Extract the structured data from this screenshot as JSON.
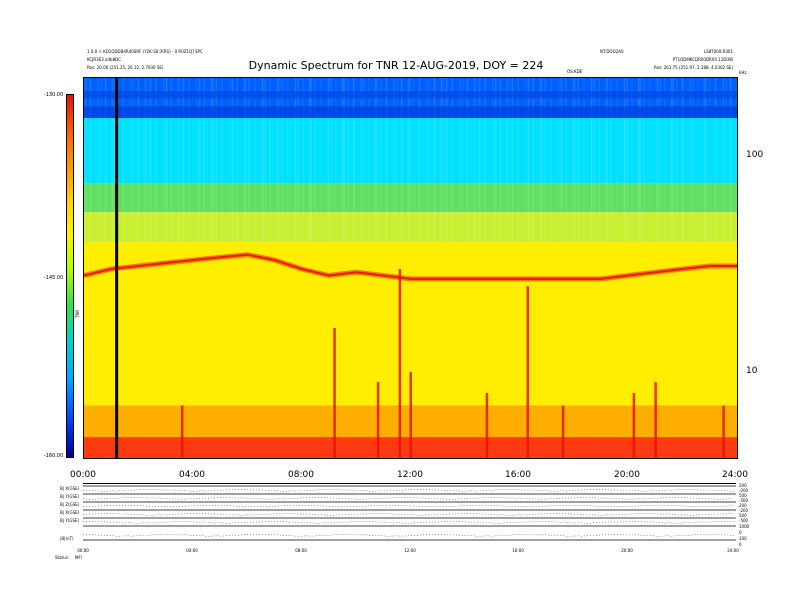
{
  "header": {
    "left_lines": [
      "1 0.0 > KD1QDDB4R40SRF (Y2K:S0 [KRS] - 0 R0Z1Q] SPC",
      "KCJR3E3.a4b8DC",
      "Res: 20.00 (251.25, 26.32, 2.7930 SE)"
    ],
    "right_lines": [
      "LS8T000:R301",
      "PT1QDMKCDR00DR04 11DIXB",
      "Res: 263.75 (251.97, 2.388, 4.0302 SE)"
    ],
    "mid_right_lines": [
      "NT:DOO2A0",
      "OS:KDE"
    ],
    "title": "Dynamic Spectrum for TNR 12-AUG-2019, DOY = 224",
    "corner": "kHz"
  },
  "colorbar": {
    "ticks": [
      "-130.00",
      "-145.00",
      "-160.00"
    ],
    "label": "TNR"
  },
  "chart_data": {
    "type": "heatmap",
    "title": "Dynamic Spectrum for TNR 12-AUG-2019, DOY = 224",
    "xlabel": "",
    "ylabel": "kHz",
    "x_ticks": [
      "00:00",
      "04:00",
      "08:00",
      "12:00",
      "16:00",
      "20:00",
      "24:00"
    ],
    "xlim_hours": [
      0,
      24
    ],
    "y_scale": "log",
    "ylim_khz": [
      4,
      230
    ],
    "y_ticks": [
      {
        "label": "100",
        "value": 100
      },
      {
        "label": "10",
        "value": 10
      }
    ],
    "color_scale": {
      "min": -160.0,
      "max": -130.0,
      "unit": "TNR"
    },
    "bands": [
      {
        "name": "dark-blue band",
        "from_khz": 150,
        "to_khz": 230,
        "color": "#0060ff"
      },
      {
        "name": "cyan background",
        "from_khz": 75,
        "to_khz": 150,
        "color": "#00e0ff"
      },
      {
        "name": "green transition",
        "from_khz": 55,
        "to_khz": 75,
        "color": "#60e060"
      },
      {
        "name": "yellow-green",
        "from_khz": 40,
        "to_khz": 55,
        "color": "#c8f030"
      },
      {
        "name": "yellow background",
        "from_khz": 7,
        "to_khz": 40,
        "color": "#ffee00"
      },
      {
        "name": "orange",
        "from_khz": 5,
        "to_khz": 7,
        "color": "#ffae00"
      },
      {
        "name": "red floor",
        "from_khz": 4,
        "to_khz": 5,
        "color": "#ff3a10"
      }
    ],
    "emission_line_khz": [
      [
        0,
        28
      ],
      [
        1,
        30
      ],
      [
        2,
        31
      ],
      [
        3,
        32
      ],
      [
        4,
        33
      ],
      [
        5,
        34
      ],
      [
        6,
        35
      ],
      [
        7,
        33
      ],
      [
        8,
        30
      ],
      [
        9,
        28
      ],
      [
        10,
        29
      ],
      [
        11,
        28
      ],
      [
        12,
        27
      ],
      [
        13,
        27
      ],
      [
        14,
        27
      ],
      [
        15,
        27
      ],
      [
        16,
        27
      ],
      [
        17,
        27
      ],
      [
        18,
        27
      ],
      [
        19,
        27
      ],
      [
        20,
        28
      ],
      [
        21,
        29
      ],
      [
        22,
        30
      ],
      [
        23,
        31
      ],
      [
        24,
        31
      ]
    ],
    "spikes": [
      {
        "hour": 9.2,
        "from_khz": 4,
        "to_khz": 16
      },
      {
        "hour": 11.6,
        "from_khz": 4,
        "to_khz": 30
      },
      {
        "hour": 12.0,
        "from_khz": 4,
        "to_khz": 10
      },
      {
        "hour": 16.3,
        "from_khz": 4,
        "to_khz": 25
      },
      {
        "hour": 10.8,
        "from_khz": 4,
        "to_khz": 9
      },
      {
        "hour": 3.6,
        "from_khz": 4,
        "to_khz": 7
      },
      {
        "hour": 14.8,
        "from_khz": 4,
        "to_khz": 8
      },
      {
        "hour": 17.6,
        "from_khz": 4,
        "to_khz": 7
      },
      {
        "hour": 20.2,
        "from_khz": 4,
        "to_khz": 8
      },
      {
        "hour": 21.0,
        "from_khz": 4,
        "to_khz": 9
      },
      {
        "hour": 23.5,
        "from_khz": 4,
        "to_khz": 7
      }
    ],
    "marker_hour": 1.2
  },
  "lower_panels": {
    "labels": [
      "B| X(GSE)",
      "B| Y(GSE)",
      "B| Z(GSE)",
      "B| X(GSE)",
      "B| Y(GSE)",
      "|B|(nT)"
    ],
    "right_labels": [
      "200",
      "-200",
      "500",
      "-500",
      "200",
      "-200",
      "500",
      "-500",
      "1000",
      "0",
      "100",
      "0"
    ],
    "x_ticks": [
      "00:00",
      "04:00",
      "08:00",
      "12:00",
      "16:00",
      "20:00",
      "24:00"
    ],
    "footer_left": "Status:",
    "footer_left2": "MFI"
  }
}
